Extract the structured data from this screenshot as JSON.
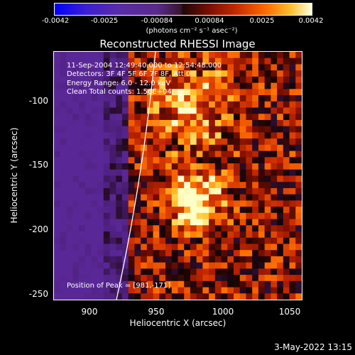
{
  "colorbar": {
    "ticks": [
      "-0.0042",
      "-0.0025",
      "-0.00084",
      "0.00084",
      "0.0025",
      "0.0042"
    ],
    "unit": "(photons cm⁻² s⁻¹ asec⁻²)"
  },
  "title": "Reconstructed RHESSI Image",
  "info": {
    "time": "11-Sep-2004 12:49:40.000 to 12:54:48.000",
    "detectors": "Detectors: 3F 4F 5F 6F 7F 8F, Att 0",
    "energy": "Energy Range: 6.0 - 12.0 keV",
    "clean": "Clean      Total counts: 1.56E+04",
    "peak": "Position of Peak = [981,-171]"
  },
  "axes": {
    "xlabel": "Heliocentric X (arcsec)",
    "ylabel": "Heliocentric Y (arcsec)",
    "xticks": [
      "900",
      "950",
      "1000",
      "1050"
    ],
    "yticks": [
      "-100",
      "-150",
      "-200",
      "-250"
    ]
  },
  "datestamp": "3-May-2022 13:15",
  "colors": {
    "background": "#000000",
    "text": "#ffffff"
  }
}
